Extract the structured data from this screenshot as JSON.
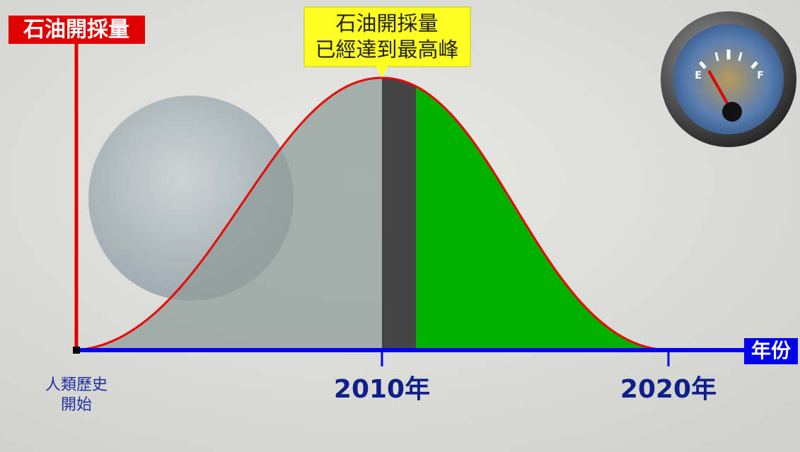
{
  "y_axis_label": "石油開採量",
  "x_axis_label": "年份",
  "callout": [
    "石油開採量",
    "已經達到最高峰"
  ],
  "start_label": [
    "人類歷史",
    "開始"
  ],
  "x_labels": [
    "2010年",
    "2020年"
  ],
  "gauge": {
    "empty": "E",
    "full": "F"
  }
}
